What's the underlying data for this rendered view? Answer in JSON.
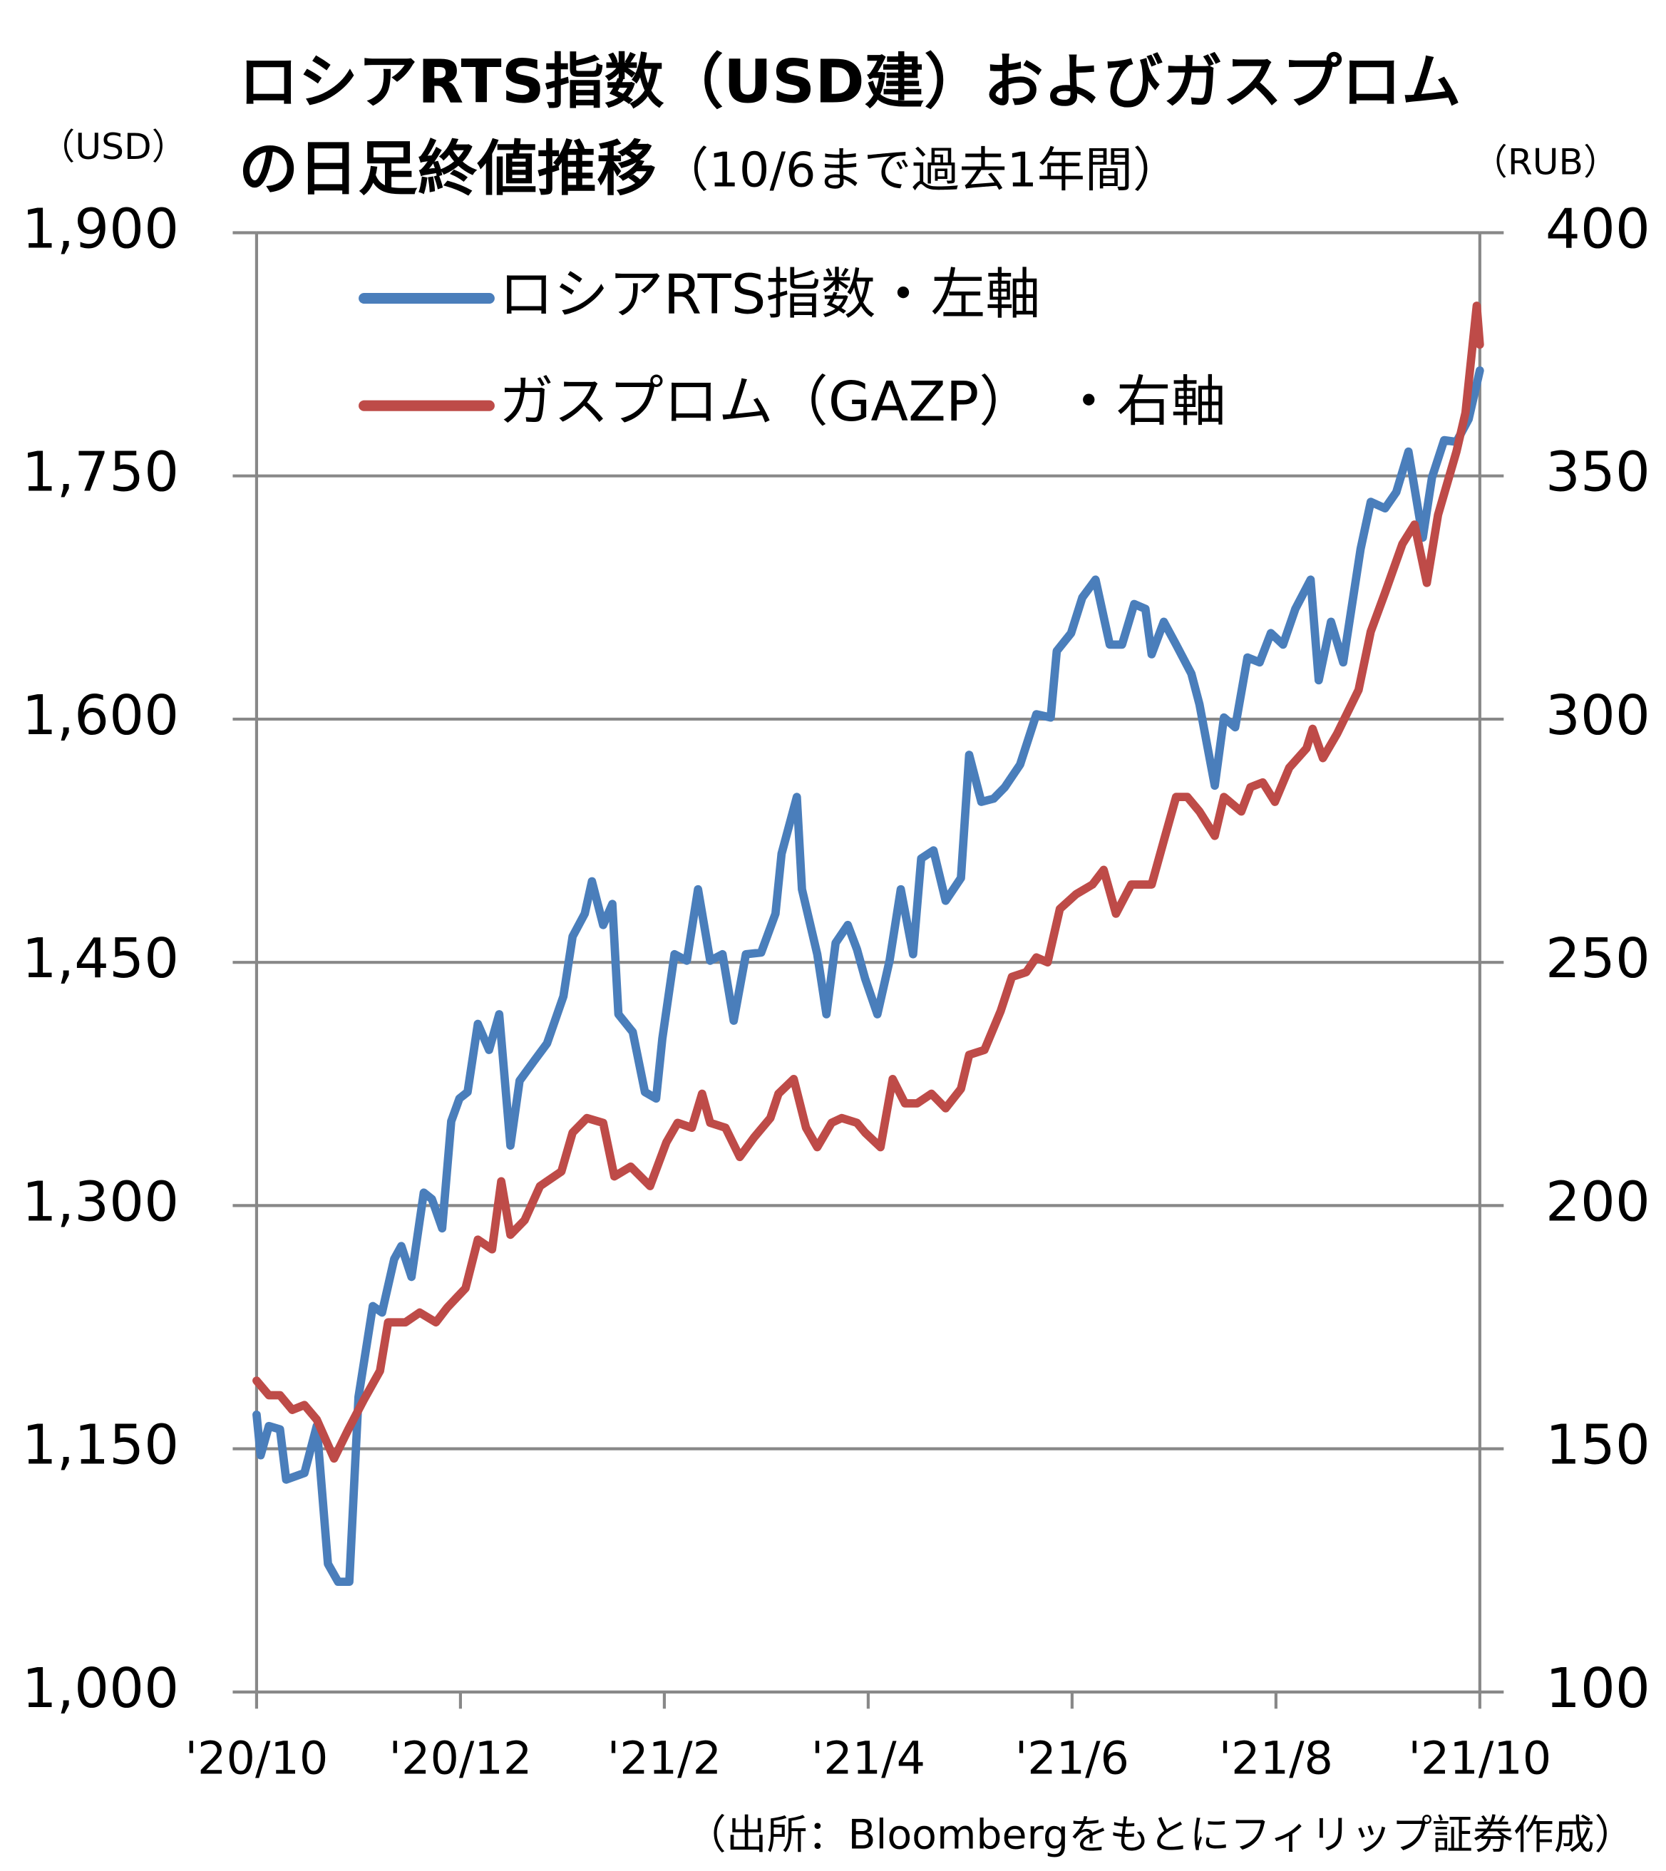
{
  "chart_data": {
    "type": "line",
    "title": [
      "ロシアRTS指数（USD建）およびガスプロム",
      "の日足終値推移"
    ],
    "subtitle": "（10/6まで過去1年間）",
    "y_label": "（USD）",
    "y2_label": "（RUB）",
    "source": "（出所：Bloombergをもとにフィリップ証券作成）",
    "xlim": [
      0,
      12
    ],
    "xticks": [
      {
        "value": 0,
        "label": "'20/10"
      },
      {
        "value": 2,
        "label": "'20/12"
      },
      {
        "value": 4,
        "label": "'21/2"
      },
      {
        "value": 6,
        "label": "'21/4"
      },
      {
        "value": 8,
        "label": "'21/6"
      },
      {
        "value": 10,
        "label": "'21/8"
      },
      {
        "value": 12,
        "label": "'21/10"
      }
    ],
    "ylim": [
      1000,
      1900
    ],
    "yticks": [
      {
        "value": 1000,
        "label": "1,000"
      },
      {
        "value": 1150,
        "label": "1,150"
      },
      {
        "value": 1300,
        "label": "1,300"
      },
      {
        "value": 1450,
        "label": "1,450"
      },
      {
        "value": 1600,
        "label": "1,600"
      },
      {
        "value": 1750,
        "label": "1,750"
      },
      {
        "value": 1900,
        "label": "1,900"
      }
    ],
    "y2lim": [
      100,
      400
    ],
    "y2ticks": [
      100,
      150,
      200,
      250,
      300,
      350,
      400
    ],
    "grid": true,
    "legend": "top-left",
    "series": [
      {
        "name": "ロシアRTS指数・左軸",
        "color": "#4a7ebb",
        "x": [
          0,
          0.04,
          0.12,
          0.23,
          0.29,
          0.47,
          0.59,
          0.7,
          0.8,
          0.91,
          1.0,
          1.14,
          1.23,
          1.35,
          1.42,
          1.52,
          1.64,
          1.72,
          1.82,
          1.91,
          1.99,
          2.07,
          2.17,
          2.28,
          2.38,
          2.49,
          2.58,
          2.72,
          2.85,
          3.01,
          3.1,
          3.22,
          3.29,
          3.4,
          3.49,
          3.55,
          3.69,
          3.81,
          3.92,
          3.98,
          4.1,
          4.22,
          4.33,
          4.45,
          4.57,
          4.68,
          4.8,
          4.95,
          5.09,
          5.15,
          5.3,
          5.35,
          5.5,
          5.59,
          5.68,
          5.8,
          5.89,
          5.97,
          6.09,
          6.21,
          6.32,
          6.44,
          6.52,
          6.64,
          6.76,
          6.91,
          6.99,
          7.11,
          7.23,
          7.34,
          7.49,
          7.65,
          7.79,
          7.85,
          7.99,
          8.1,
          8.23,
          8.37,
          8.49,
          8.61,
          8.72,
          8.78,
          8.9,
          9.02,
          9.17,
          9.25,
          9.4,
          9.49,
          9.6,
          9.72,
          9.84,
          9.95,
          10.07,
          10.19,
          10.34,
          10.42,
          10.54,
          10.66,
          10.83,
          10.93,
          11.07,
          11.18,
          11.3,
          11.44,
          11.53,
          11.65,
          11.77,
          11.89,
          12.0
        ],
        "values": [
          1171,
          1146,
          1164,
          1162,
          1131,
          1135,
          1164,
          1079,
          1068,
          1068,
          1182,
          1238,
          1234,
          1267,
          1275,
          1256,
          1308,
          1304,
          1286,
          1352,
          1366,
          1370,
          1412,
          1396,
          1418,
          1337,
          1377,
          1389,
          1400,
          1429,
          1466,
          1480,
          1500,
          1473,
          1486,
          1418,
          1407,
          1370,
          1366,
          1403,
          1455,
          1451,
          1495,
          1451,
          1455,
          1414,
          1455,
          1456,
          1480,
          1517,
          1552,
          1495,
          1455,
          1418,
          1462,
          1473,
          1458,
          1440,
          1418,
          1451,
          1495,
          1455,
          1514,
          1519,
          1488,
          1502,
          1578,
          1549,
          1551,
          1558,
          1572,
          1603,
          1601,
          1642,
          1653,
          1675,
          1686,
          1646,
          1646,
          1671,
          1668,
          1640,
          1660,
          1646,
          1628,
          1609,
          1559,
          1601,
          1595,
          1638,
          1635,
          1653,
          1646,
          1668,
          1686,
          1624,
          1660,
          1635,
          1705,
          1734,
          1730,
          1740,
          1765,
          1712,
          1749,
          1772,
          1771,
          1785,
          1815
        ]
      },
      {
        "name": "ガスプロム（GAZP）　・右軸",
        "color": "#be4b48",
        "axis": "y2",
        "x": [
          0,
          0.12,
          0.23,
          0.35,
          0.47,
          0.59,
          0.76,
          0.9,
          1.05,
          1.21,
          1.29,
          1.46,
          1.6,
          1.76,
          1.87,
          2.05,
          2.17,
          2.31,
          2.4,
          2.49,
          2.63,
          2.78,
          2.99,
          3.1,
          3.24,
          3.4,
          3.51,
          3.67,
          3.86,
          4.02,
          4.13,
          4.27,
          4.37,
          4.45,
          4.6,
          4.74,
          4.88,
          5.04,
          5.12,
          5.27,
          5.39,
          5.5,
          5.64,
          5.74,
          5.89,
          5.97,
          6.12,
          6.24,
          6.36,
          6.48,
          6.62,
          6.76,
          6.91,
          6.99,
          7.14,
          7.3,
          7.41,
          7.55,
          7.65,
          7.76,
          7.88,
          8.04,
          8.2,
          8.31,
          8.43,
          8.58,
          8.78,
          8.9,
          9.02,
          9.13,
          9.25,
          9.4,
          9.49,
          9.66,
          9.75,
          9.87,
          9.99,
          10.13,
          10.3,
          10.36,
          10.46,
          10.6,
          10.81,
          10.93,
          11.07,
          11.24,
          11.36,
          11.48,
          11.59,
          11.77,
          11.86,
          11.97,
          12.0
        ],
        "values": [
          164,
          161,
          161,
          158,
          159,
          156,
          148,
          154,
          160,
          166,
          176,
          176,
          178,
          176,
          179,
          183,
          193,
          191,
          205,
          194,
          197,
          204,
          207,
          215,
          218,
          217,
          206,
          208,
          204,
          213,
          217,
          216,
          223,
          217,
          216,
          210,
          214,
          218,
          223,
          226,
          216,
          212,
          217,
          218,
          217,
          215,
          212,
          226,
          221,
          221,
          223,
          220,
          224,
          231,
          232,
          240,
          247,
          248,
          251,
          250,
          261,
          264,
          266,
          269,
          260,
          266,
          266,
          275,
          284,
          284,
          281,
          276,
          284,
          281,
          286,
          287,
          283,
          290,
          294,
          298,
          292,
          297,
          306,
          318,
          326,
          336,
          340,
          328,
          342,
          355,
          363,
          385,
          377
        ]
      }
    ]
  }
}
